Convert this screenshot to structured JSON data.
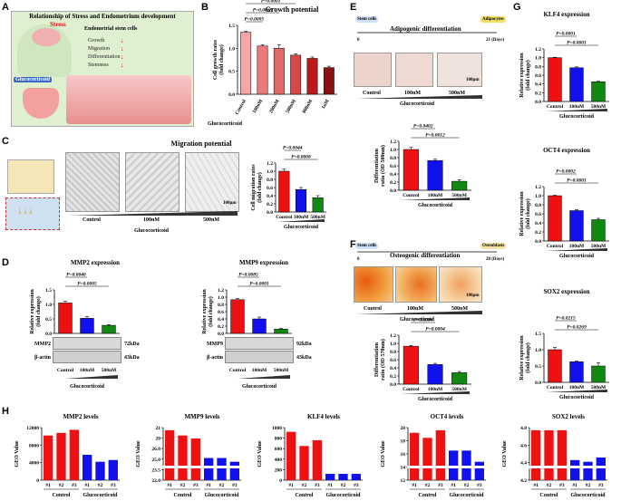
{
  "panels": {
    "A": "A",
    "B": "B",
    "C": "C",
    "D": "D",
    "E": "E",
    "F": "F",
    "G": "G",
    "H": "H"
  },
  "panelA": {
    "title": "Relationship of Stress and Endometrium development",
    "stress": "Stress",
    "glucocorticoid": "Glucocorticoid",
    "cells_title": "Endometrial stem cells",
    "items": [
      "Growth",
      "Migration",
      "Differentiation",
      "Stemness"
    ]
  },
  "panelB": {
    "title": "Growth potential",
    "ylabel": "Cell growth rates\n(fold change)",
    "xgroup": "Glucocorticoid",
    "pvals": [
      "P=0.0005",
      "P=0.0069",
      "P=0.0001",
      "P=0.0001",
      "P=0.0001"
    ],
    "chart_data": {
      "type": "bar",
      "categories": [
        "Control",
        "100nM",
        "200nM",
        "500nM",
        "800nM",
        "1uM"
      ],
      "values": [
        1.35,
        1.05,
        1.0,
        0.85,
        0.78,
        0.58
      ],
      "errors": [
        0.02,
        0.03,
        0.08,
        0.03,
        0.03,
        0.03
      ],
      "ylim": [
        0,
        1.5
      ],
      "yticks": [
        "0.0",
        "0.5",
        "1.0",
        "1.5"
      ],
      "colors": [
        "#f4a6a6",
        "#e87a7a",
        "#e06a6a",
        "#d84848",
        "#c01818",
        "#8b1010"
      ]
    }
  },
  "panelC": {
    "title": "Migration potential",
    "micro_labels": [
      "Control",
      "100nM",
      "500nM"
    ],
    "xgroup": "Glucocorticoid",
    "scale": "100μm",
    "ylabel": "Cell migration rates\n(fold change)",
    "pvals": [
      "P=0.0008",
      "P=0.0044"
    ],
    "chart_data": {
      "type": "bar",
      "categories": [
        "Control",
        "100nM",
        "500nM"
      ],
      "values": [
        1.0,
        0.55,
        0.35
      ],
      "errors": [
        0.05,
        0.05,
        0.05
      ],
      "ylim": [
        0,
        1.2
      ],
      "yticks": [
        "0.0",
        "0.2",
        "0.4",
        "0.6",
        "0.8",
        "1.0",
        "1.2"
      ]
    }
  },
  "panelD": {
    "mmp2": {
      "title": "MMP2 expression",
      "ylabel": "Relative expression\n(fold change)",
      "pvals": [
        "P=0.0005",
        "P=0.0046"
      ],
      "chart_data": {
        "type": "bar",
        "categories": [
          "Control",
          "100nM",
          "500nM"
        ],
        "values": [
          1.05,
          0.52,
          0.28
        ],
        "errors": [
          0.06,
          0.06,
          0.02
        ],
        "ylim": [
          0,
          1.5
        ],
        "yticks": [
          "0.0",
          "0.5",
          "1.0",
          "1.5"
        ]
      },
      "bands": [
        "MMP2",
        "β-actin"
      ],
      "sizes": [
        "72kDa",
        "43kDa"
      ]
    },
    "mmp9": {
      "title": "MMP9 expression",
      "ylabel": "Relative expression\n(fold change)",
      "pvals": [
        "P=0.0001",
        "P=0.0085"
      ],
      "chart_data": {
        "type": "bar",
        "categories": [
          "Control",
          "100nM",
          "500nM"
        ],
        "values": [
          0.93,
          0.4,
          0.12
        ],
        "errors": [
          0.03,
          0.05,
          0.02
        ],
        "ylim": [
          0,
          1.2
        ],
        "yticks": [
          "0.0",
          "0.2",
          "0.4",
          "0.6",
          "0.8",
          "1.0",
          "1.2"
        ]
      },
      "bands": [
        "MMP9",
        "β-actin"
      ],
      "sizes": [
        "92kDa",
        "43kDa"
      ]
    },
    "cats": [
      "Control",
      "100nM",
      "500nM"
    ],
    "xgroup": "Glucocorticoid"
  },
  "panelE": {
    "title": "Adipogenic differentiation",
    "stem": "Stem cells",
    "end": "Adipocytes",
    "day0": "0",
    "day21": "21 (Days)",
    "micro_labels": [
      "Control",
      "100nM",
      "500nM"
    ],
    "xgroup": "Glucocorticoid",
    "scale": "100μm",
    "ylabel": "Differentiation\nratio (OD 500nm)",
    "pvals": [
      "P=0.0012",
      "P=0.0402"
    ],
    "chart_data": {
      "type": "bar",
      "categories": [
        "Control",
        "100nM",
        "500nM"
      ],
      "values": [
        1.0,
        0.73,
        0.22
      ],
      "errors": [
        0.05,
        0.03,
        0.04
      ],
      "ylim": [
        0,
        1.2
      ],
      "yticks": [
        "0.0",
        "0.2",
        "0.4",
        "0.6",
        "0.8",
        "1.0",
        "1.2"
      ]
    }
  },
  "panelF": {
    "title": "Osteogenic differentiation",
    "stem": "Stem cells",
    "end": "Osteoblasts",
    "day0": "0",
    "day28": "28 (Days)",
    "micro_labels": [
      "Control",
      "100nM",
      "500nM"
    ],
    "xgroup": "Glucocorticoid",
    "scale": "100μm",
    "ylabel": "Differentiation\nratio (OD 570nm)",
    "pvals": [
      "P=0.0004",
      "P=0.0004"
    ],
    "chart_data": {
      "type": "bar",
      "categories": [
        "Control",
        "100nM",
        "500nM"
      ],
      "values": [
        0.93,
        0.48,
        0.28
      ],
      "errors": [
        0.02,
        0.03,
        0.03
      ],
      "ylim": [
        0,
        1.2
      ],
      "yticks": [
        "0.0",
        "0.2",
        "0.4",
        "0.6",
        "0.8",
        "1.0",
        "1.2"
      ]
    }
  },
  "panelG": {
    "klf4": {
      "title": "KLF4 expression",
      "pvals": [
        "P=0.0001",
        "P=0.0001"
      ],
      "chart_data": {
        "type": "bar",
        "categories": [
          "Control",
          "100nM",
          "500nM"
        ],
        "values": [
          1.0,
          0.77,
          0.45
        ],
        "errors": [
          0.01,
          0.02,
          0.01
        ],
        "ylim": [
          0,
          1.2
        ],
        "yticks": [
          "0.0",
          "0.2",
          "0.4",
          "0.6",
          "0.8",
          "1.0",
          "1.2"
        ]
      }
    },
    "oct4": {
      "title": "OCT4 expression",
      "pvals": [
        "P=0.0001",
        "P=0.0002"
      ],
      "chart_data": {
        "type": "bar",
        "categories": [
          "Control",
          "100nM",
          "500nM"
        ],
        "values": [
          1.0,
          0.67,
          0.47
        ],
        "errors": [
          0.01,
          0.02,
          0.03
        ],
        "ylim": [
          0,
          1.2
        ],
        "yticks": [
          "0.0",
          "0.2",
          "0.4",
          "0.6",
          "0.8",
          "1.0",
          "1.2"
        ]
      }
    },
    "sox2": {
      "title": "SOX2 expression",
      "pvals": [
        "P=0.0269",
        "P=0.0215"
      ],
      "chart_data": {
        "type": "bar",
        "categories": [
          "Control",
          "100nM",
          "500nM"
        ],
        "values": [
          1.0,
          0.63,
          0.5
        ],
        "errors": [
          0.07,
          0.02,
          0.1
        ],
        "ylim": [
          0,
          1.5
        ],
        "yticks": [
          "0.0",
          "0.5",
          "1.0",
          "1.5"
        ]
      }
    },
    "ylabel": "Relative expression\n(fold change)",
    "xgroup": "Glucocorticoid"
  },
  "panelH": {
    "ylabel": "GEO Value",
    "xcats": [
      "#1",
      "#2",
      "#3",
      "#1",
      "#2",
      "#3"
    ],
    "groups": [
      "Control",
      "Glucocorticoid"
    ],
    "charts": [
      {
        "title": "MMP2 levels",
        "type": "bar",
        "values": [
          10200,
          10800,
          11500,
          5800,
          4200,
          4600
        ],
        "yticks": [
          "0",
          "4000",
          "8000",
          "12000"
        ],
        "ymax": 12000
      },
      {
        "title": "MMP9 levels",
        "type": "bar",
        "values": [
          25.7,
          25.0,
          24.6,
          22.0,
          22.0,
          21.5
        ],
        "yticks": [
          "22.0",
          "23.5",
          "25.0",
          "26.0",
          "20",
          "21"
        ],
        "broken": true
      },
      {
        "title": "KLF4 levels",
        "type": "bar",
        "values": [
          920,
          650,
          760,
          120,
          120,
          120
        ],
        "yticks": [
          "0",
          "200",
          "400",
          "600",
          "800",
          "1000"
        ],
        "ymax": 1000
      },
      {
        "title": "OCT4 levels",
        "type": "bar",
        "values": [
          18.0,
          17.0,
          18.5,
          14.5,
          14.5,
          12.3
        ],
        "yticks": [
          "12",
          "14",
          "16",
          "18",
          "20"
        ],
        "broken": true
      },
      {
        "title": "SOX2 levels",
        "type": "bar",
        "values": [
          4.7,
          4.7,
          4.7,
          4.35,
          4.33,
          4.38
        ],
        "yticks": [
          "4.2",
          "4.4",
          "4.6",
          "4.8"
        ],
        "broken": true
      }
    ]
  },
  "colors": {
    "red": "#ee1111",
    "blue": "#1111ee",
    "green": "#118811"
  }
}
